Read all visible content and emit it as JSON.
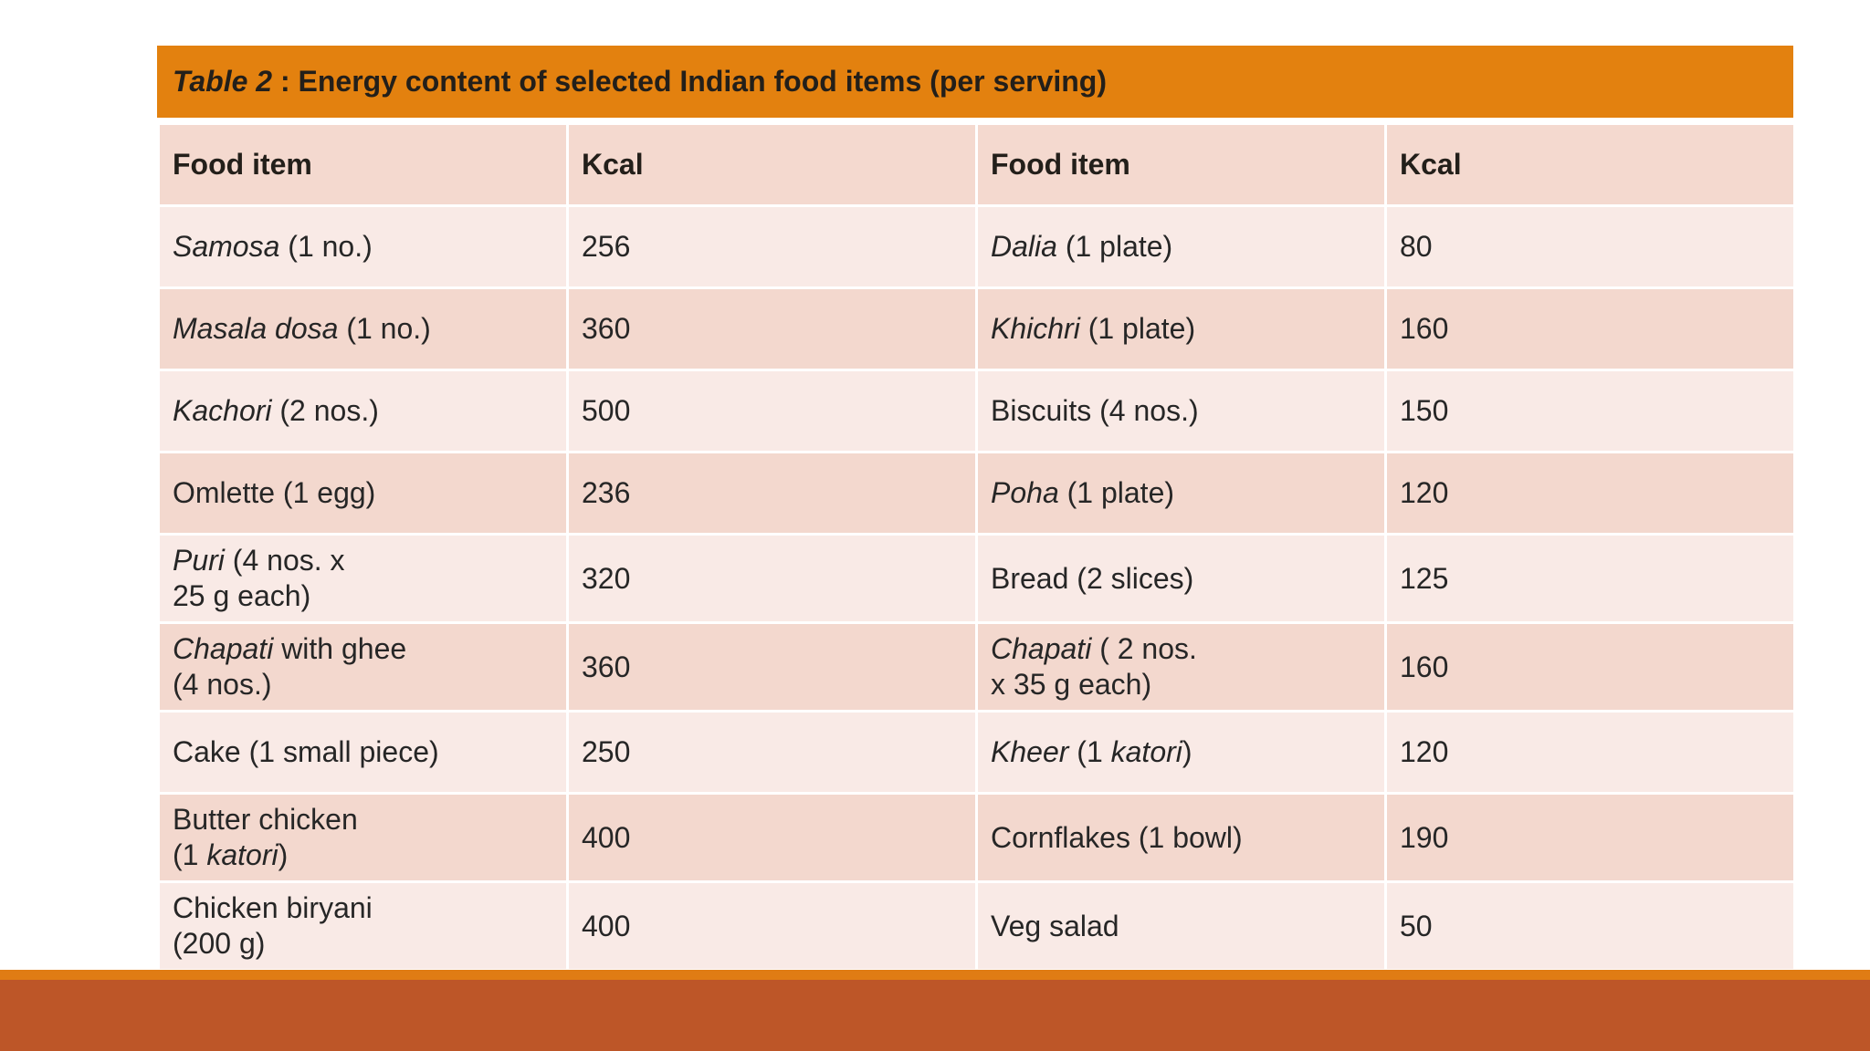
{
  "title": {
    "label": "Table 2",
    "text": " : Energy content of selected Indian food items (per serving)"
  },
  "headers": [
    "Food item",
    "Kcal",
    "Food item",
    "Kcal"
  ],
  "rows": [
    {
      "a_it": "Samosa",
      "a_rest": " (1 no.)",
      "a_kcal": "256",
      "b_it": "Dalia",
      "b_rest": " (1 plate)",
      "b_kcal": "80"
    },
    {
      "a_it": "Masala dosa",
      "a_rest": " (1 no.)",
      "a_kcal": "360",
      "b_it": "Khichri",
      "b_rest": " (1 plate)",
      "b_kcal": "160"
    },
    {
      "a_it": "Kachori",
      "a_rest": " (2 nos.)",
      "a_kcal": "500",
      "b_plain": "Biscuits (4 nos.)",
      "b_kcal": "150"
    },
    {
      "a_plain": "Omlette (1 egg)",
      "a_kcal": "236",
      "b_it": "Poha",
      "b_rest": " (1 plate)",
      "b_kcal": "120"
    },
    {
      "a_it": "Puri",
      "a_rest": " (4 nos. x",
      "a_line2": "25 g each)",
      "a_kcal": "320",
      "b_plain": "Bread (2 slices)",
      "b_kcal": "125"
    },
    {
      "a_it": "Chapati",
      "a_rest": " with ghee",
      "a_line2": "(4 nos.)",
      "a_kcal": "360",
      "b_it": "Chapati",
      "b_rest": " ( 2 nos.",
      "b_line2": "x 35 g each)",
      "b_kcal": "160"
    },
    {
      "a_plain": "Cake (1 small piece)",
      "a_kcal": "250",
      "b_it": "Kheer",
      "b_rest_open": " (1 ",
      "b_it2": "katori",
      "b_rest_close": ")",
      "b_kcal": "120"
    },
    {
      "a_plain": "Butter chicken",
      "a_line2_open": "(1 ",
      "a_line2_it": "katori",
      "a_line2_close": ")",
      "a_kcal": "400",
      "b_plain": "Cornflakes (1 bowl)",
      "b_kcal": "190"
    },
    {
      "a_plain": "Chicken biryani",
      "a_line2": "(200 g)",
      "a_kcal": "400",
      "b_plain": "Veg salad",
      "b_kcal": "50"
    }
  ],
  "colors": {
    "title_bar": "#e3810f",
    "header_row": "#f4d9cf",
    "row_light": "#f9eae6",
    "row_dark": "#f3d8ce",
    "bottom_bar": "#bd5628",
    "bottom_line": "#e07c14"
  }
}
